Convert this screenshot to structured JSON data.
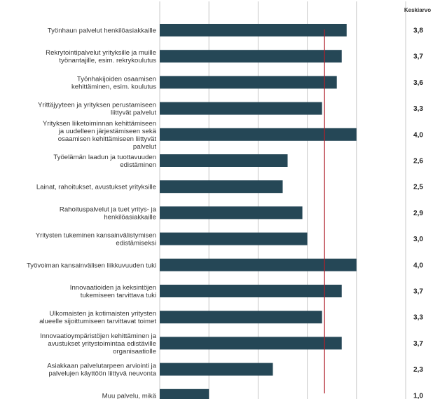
{
  "chart_data": {
    "type": "bar",
    "orientation": "horizontal",
    "value_column_header": "Keskiarvo",
    "categories": [
      [
        "Työnhaun palvelut henkilöasiakkaille"
      ],
      [
        "Rekrytointipalvelut yrityksille ja muille",
        "työnantajille, esim. rekrykoulutus"
      ],
      [
        "Työnhakijoiden osaamisen",
        "kehittäminen, esim. koulutus"
      ],
      [
        "Yrittäjyyteen ja yrityksen perustamiseen",
        "liittyvät palvelut"
      ],
      [
        "Yrityksen liiketoiminnan kehittämiseen",
        "ja uudelleen järjestämiseen sekä",
        "osaamisen kehittämiseen liittyvät",
        "palvelut"
      ],
      [
        "Työelämän laadun ja tuottavuuden",
        "edistäminen"
      ],
      [
        "Lainat, rahoitukset, avustukset yrityksille"
      ],
      [
        "Rahoituspalvelut ja tuet yritys- ja",
        "henkilöasiakkaille"
      ],
      [
        "Yritysten tukeminen kansainvälistymisen",
        "edistämiseksi"
      ],
      [
        "Työvoiman kansainvälisen liikkuvuuden tuki"
      ],
      [
        "Innovaatioiden ja keksintöjen",
        "tukemiseen tarvittava tuki"
      ],
      [
        "Ulkomaisten ja kotimaisten yritysten",
        "alueelle sijoittumiseen tarvittavat toimet"
      ],
      [
        "Innovaatioympäristöjen kehittäminen ja",
        "avustukset yritystoimintaa edistäville",
        "organisaatiolle"
      ],
      [
        "Asiakkaan palvelutarpeen arviointi ja",
        "palvelujen käyttöön liittyvä neuvonta"
      ],
      [
        "Muu palvelu, mikä"
      ]
    ],
    "values": [
      3.8,
      3.7,
      3.6,
      3.3,
      4.0,
      2.6,
      2.5,
      2.9,
      3.0,
      4.0,
      3.7,
      3.3,
      3.7,
      2.3,
      1.0
    ],
    "value_labels": [
      "3,8",
      "3,7",
      "3,6",
      "3,3",
      "4,0",
      "2,6",
      "2,5",
      "2,9",
      "3,0",
      "4,0",
      "3,7",
      "3,3",
      "3,7",
      "2,3",
      "1,0"
    ],
    "reference_line": 3.35,
    "xlim": [
      0,
      5
    ],
    "grid": true,
    "bar_color": "#254756",
    "reference_line_color": "#b0202a",
    "grid_color": "#c8c8c8"
  }
}
